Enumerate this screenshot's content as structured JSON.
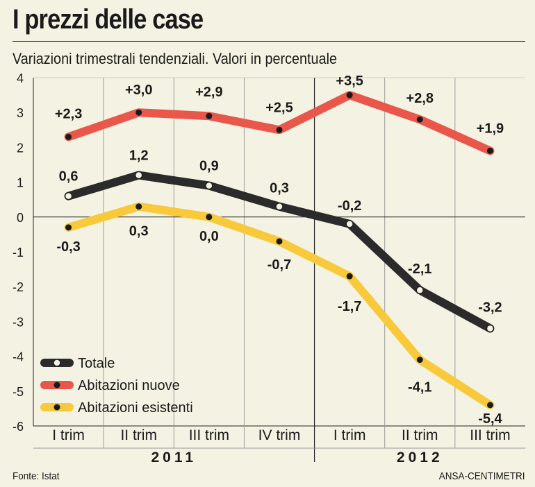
{
  "header": {
    "title": "I prezzi delle case",
    "subtitle": "Variazioni trimestrali tendenziali. Valori in percentuale"
  },
  "footer": {
    "source": "Fonte: Istat",
    "credit": "ANSA-CENTIMETRI"
  },
  "chart_data": {
    "type": "line",
    "title": "I prezzi delle case",
    "subtitle": "Variazioni trimestrali tendenziali. Valori in percentuale",
    "categories": [
      "I trim",
      "II trim",
      "III trim",
      "IV trim",
      "I trim",
      "II trim",
      "III trim"
    ],
    "groups": [
      {
        "label": "2011",
        "count": 4
      },
      {
        "label": "2012",
        "count": 3
      }
    ],
    "ylim": [
      -6,
      4
    ],
    "yticks": [
      4,
      3,
      2,
      1,
      0,
      -1,
      -2,
      -3,
      -4,
      -5,
      -6
    ],
    "grid": true,
    "legend_position": "bottom-left",
    "series": [
      {
        "name": "Abitazioni nuove",
        "color": "#e9574a",
        "marker": "dot",
        "values": [
          2.3,
          3.0,
          2.9,
          2.5,
          3.5,
          2.8,
          1.9
        ],
        "labels": [
          "+2,3",
          "+3,0",
          "+2,9",
          "+2,5",
          "+3,5",
          "+2,8",
          "+1,9"
        ]
      },
      {
        "name": "Totale",
        "color": "#2b2b2b",
        "marker": "ring",
        "values": [
          0.6,
          1.2,
          0.9,
          0.3,
          -0.2,
          -2.1,
          -3.2
        ],
        "labels": [
          "0,6",
          "1,2",
          "0,9",
          "0,3",
          "-0,2",
          "-2,1",
          "-3,2"
        ]
      },
      {
        "name": "Abitazioni esistenti",
        "color": "#f8c93a",
        "marker": "dot",
        "values": [
          -0.3,
          0.3,
          0.0,
          -0.7,
          -1.7,
          -4.1,
          -5.4
        ],
        "labels": [
          "-0,3",
          "0,3",
          "0,0",
          "-0,7",
          "-1,7",
          "-4,1",
          "-5,4"
        ]
      }
    ],
    "legend_order": [
      "Totale",
      "Abitazioni nuove",
      "Abitazioni esistenti"
    ]
  }
}
